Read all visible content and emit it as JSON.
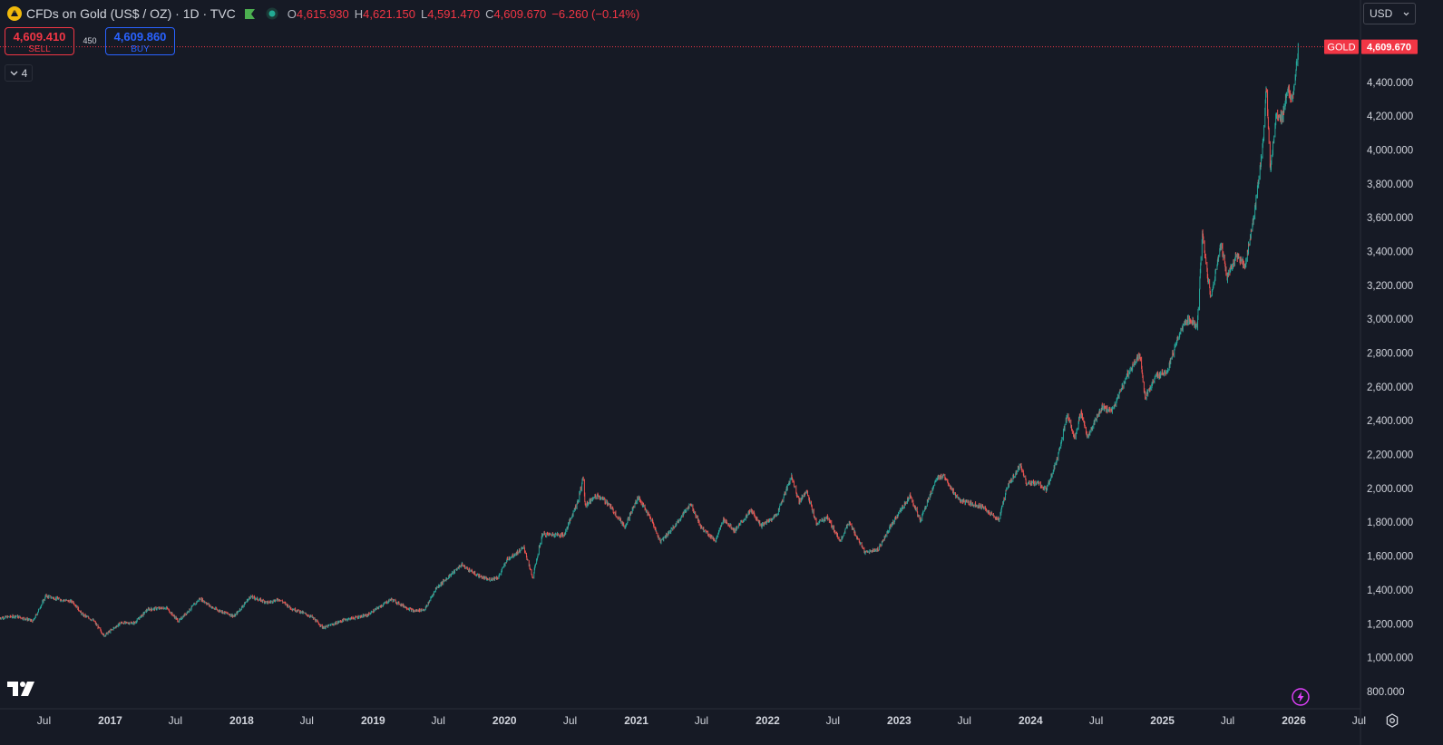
{
  "header": {
    "title": "CFDs on Gold (US$ / OZ) · 1D · TVC",
    "ohlc": {
      "o_label": "O",
      "o_value": "4,615.930",
      "h_label": "H",
      "h_value": "4,621.150",
      "l_label": "L",
      "l_value": "4,591.470",
      "c_label": "C",
      "c_value": "4,609.670",
      "change": "−6.260 (−0.14%)"
    }
  },
  "trade": {
    "sell_price": "4,609.410",
    "sell_label": "SELL",
    "spread": "450",
    "buy_price": "4,609.860",
    "buy_label": "BUY"
  },
  "indicators_toggle": {
    "count": "4"
  },
  "currency": {
    "selected": "USD"
  },
  "price_tag": {
    "symbol": "GOLD",
    "value": "4,609.670"
  },
  "colors": {
    "background": "#161a25",
    "up": "#26a69a",
    "down": "#ef5350",
    "grid_text": "#d1d4dc",
    "axis_border": "#2a2e39",
    "price_tag": "#f23645"
  },
  "icons": [
    "gold-logo-icon",
    "flag-icon",
    "market-status-icon",
    "chevron-down-icon",
    "tradingview-logo-icon",
    "lightning-icon",
    "settings-icon"
  ],
  "chart_data": {
    "type": "candlestick",
    "y_axis_labels": [
      "4,400.000",
      "4,200.000",
      "4,000.000",
      "3,800.000",
      "3,600.000",
      "3,400.000",
      "3,200.000",
      "3,000.000",
      "2,800.000",
      "2,600.000",
      "2,400.000",
      "2,200.000",
      "2,000.000",
      "1,800.000",
      "1,600.000",
      "1,400.000",
      "1,200.000",
      "1,000.000",
      "800.000"
    ],
    "ylim": [
      730,
      4790
    ],
    "x_axis_labels": [
      "Jul",
      "2017",
      "Jul",
      "2018",
      "Jul",
      "2019",
      "Jul",
      "2020",
      "Jul",
      "2021",
      "Jul",
      "2022",
      "Jul",
      "2023",
      "Jul",
      "2024",
      "Jul",
      "2025",
      "Jul",
      "2026",
      "Jul"
    ],
    "x_start": "2016-03-01",
    "x_end": "2026-07-05",
    "last_price": 4609.67,
    "series_anchors": [
      [
        "2016-03-01",
        1235
      ],
      [
        "2016-04-15",
        1245
      ],
      [
        "2016-06-01",
        1215
      ],
      [
        "2016-07-06",
        1365
      ],
      [
        "2016-08-10",
        1345
      ],
      [
        "2016-09-20",
        1330
      ],
      [
        "2016-10-15",
        1255
      ],
      [
        "2016-11-15",
        1220
      ],
      [
        "2016-12-15",
        1130
      ],
      [
        "2017-01-30",
        1205
      ],
      [
        "2017-03-10",
        1205
      ],
      [
        "2017-04-15",
        1285
      ],
      [
        "2017-06-06",
        1295
      ],
      [
        "2017-07-10",
        1215
      ],
      [
        "2017-09-08",
        1350
      ],
      [
        "2017-10-15",
        1290
      ],
      [
        "2017-12-12",
        1245
      ],
      [
        "2018-01-25",
        1360
      ],
      [
        "2018-03-15",
        1325
      ],
      [
        "2018-04-15",
        1345
      ],
      [
        "2018-05-20",
        1290
      ],
      [
        "2018-06-15",
        1270
      ],
      [
        "2018-07-15",
        1240
      ],
      [
        "2018-08-16",
        1175
      ],
      [
        "2018-10-15",
        1225
      ],
      [
        "2018-12-15",
        1250
      ],
      [
        "2019-02-20",
        1345
      ],
      [
        "2019-04-23",
        1275
      ],
      [
        "2019-05-25",
        1285
      ],
      [
        "2019-06-25",
        1410
      ],
      [
        "2019-08-10",
        1500
      ],
      [
        "2019-09-04",
        1550
      ],
      [
        "2019-10-15",
        1490
      ],
      [
        "2019-11-15",
        1460
      ],
      [
        "2019-12-15",
        1475
      ],
      [
        "2020-01-08",
        1580
      ],
      [
        "2020-02-24",
        1650
      ],
      [
        "2020-03-19",
        1470
      ],
      [
        "2020-04-15",
        1730
      ],
      [
        "2020-06-15",
        1725
      ],
      [
        "2020-07-25",
        1940
      ],
      [
        "2020-08-06",
        2070
      ],
      [
        "2020-08-12",
        1900
      ],
      [
        "2020-09-15",
        1960
      ],
      [
        "2020-10-15",
        1910
      ],
      [
        "2020-11-30",
        1775
      ],
      [
        "2021-01-06",
        1950
      ],
      [
        "2021-02-15",
        1800
      ],
      [
        "2021-03-08",
        1685
      ],
      [
        "2021-04-15",
        1770
      ],
      [
        "2021-06-01",
        1910
      ],
      [
        "2021-06-30",
        1770
      ],
      [
        "2021-08-09",
        1690
      ],
      [
        "2021-09-01",
        1820
      ],
      [
        "2021-10-01",
        1750
      ],
      [
        "2021-11-16",
        1870
      ],
      [
        "2021-12-15",
        1780
      ],
      [
        "2022-01-25",
        1840
      ],
      [
        "2022-03-08",
        2070
      ],
      [
        "2022-03-30",
        1920
      ],
      [
        "2022-04-18",
        1990
      ],
      [
        "2022-05-16",
        1790
      ],
      [
        "2022-06-15",
        1830
      ],
      [
        "2022-07-21",
        1690
      ],
      [
        "2022-08-15",
        1800
      ],
      [
        "2022-09-28",
        1620
      ],
      [
        "2022-11-03",
        1640
      ],
      [
        "2022-12-15",
        1800
      ],
      [
        "2023-02-01",
        1960
      ],
      [
        "2023-02-28",
        1810
      ],
      [
        "2023-04-13",
        2050
      ],
      [
        "2023-05-04",
        2080
      ],
      [
        "2023-06-15",
        1930
      ],
      [
        "2023-08-15",
        1895
      ],
      [
        "2023-10-05",
        1815
      ],
      [
        "2023-10-27",
        2005
      ],
      [
        "2023-12-04",
        2140
      ],
      [
        "2023-12-20",
        2030
      ],
      [
        "2024-01-20",
        2030
      ],
      [
        "2024-02-14",
        1990
      ],
      [
        "2024-03-15",
        2180
      ],
      [
        "2024-04-12",
        2430
      ],
      [
        "2024-05-03",
        2300
      ],
      [
        "2024-05-20",
        2450
      ],
      [
        "2024-06-07",
        2300
      ],
      [
        "2024-07-17",
        2480
      ],
      [
        "2024-08-15",
        2460
      ],
      [
        "2024-09-25",
        2670
      ],
      [
        "2024-10-30",
        2790
      ],
      [
        "2024-11-14",
        2540
      ],
      [
        "2024-12-15",
        2660
      ],
      [
        "2025-01-15",
        2700
      ],
      [
        "2025-02-24",
        2950
      ],
      [
        "2025-03-15",
        3000
      ],
      [
        "2025-04-08",
        2960
      ],
      [
        "2025-04-22",
        3500
      ],
      [
        "2025-05-15",
        3120
      ],
      [
        "2025-06-13",
        3450
      ],
      [
        "2025-06-30",
        3250
      ],
      [
        "2025-07-25",
        3380
      ],
      [
        "2025-08-20",
        3320
      ],
      [
        "2025-09-15",
        3650
      ],
      [
        "2025-10-08",
        4050
      ],
      [
        "2025-10-17",
        4370
      ],
      [
        "2025-10-28",
        3890
      ],
      [
        "2025-11-13",
        4200
      ],
      [
        "2025-12-01",
        4200
      ],
      [
        "2025-12-15",
        4350
      ],
      [
        "2025-12-29",
        4310
      ],
      [
        "2026-01-08",
        4480
      ],
      [
        "2026-01-13",
        4609.67
      ]
    ]
  }
}
